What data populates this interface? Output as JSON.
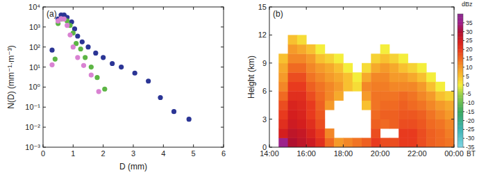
{
  "chart_data": [
    {
      "type": "scatter",
      "panel_label": "(a)",
      "xlabel": "D (mm)",
      "ylabel": "N(D) (mm⁻¹·m⁻³)",
      "log": "y",
      "grid": false,
      "xlim": [
        0,
        6
      ],
      "xticks": [
        0,
        1,
        2,
        3,
        4,
        5,
        6
      ],
      "ylim": [
        0.001,
        10000
      ],
      "yticks": [
        {
          "value": 0.001,
          "label": "10⁻³"
        },
        {
          "value": 0.01,
          "label": "10⁻²"
        },
        {
          "value": 0.1,
          "label": "10⁻¹"
        },
        {
          "value": 1,
          "label": "10⁰"
        },
        {
          "value": 10,
          "label": "10¹"
        },
        {
          "value": 100,
          "label": "10²"
        },
        {
          "value": 1000,
          "label": "10³"
        },
        {
          "value": 10000,
          "label": "10⁴"
        }
      ],
      "series": [
        {
          "color": "#2b3595",
          "marker": "circle",
          "x": [
            0.3,
            0.5,
            0.6,
            0.7,
            0.8,
            0.95,
            1.05,
            1.15,
            1.3,
            1.5,
            1.75,
            2.0,
            2.3,
            2.6,
            3.05,
            3.5,
            3.9,
            4.35,
            4.85
          ],
          "values": [
            70,
            2500,
            4000,
            4000,
            3000,
            1800,
            800,
            350,
            180,
            100,
            50,
            30,
            15,
            10,
            5,
            2,
            0.3,
            0.06,
            0.025
          ]
        },
        {
          "color": "#5cb544",
          "marker": "circle",
          "x": [
            0.4,
            0.5,
            0.6,
            0.7,
            0.8,
            0.9,
            1.0,
            1.1,
            1.25,
            1.4,
            1.6,
            1.8,
            2.05
          ],
          "values": [
            25,
            1500,
            2500,
            2500,
            2000,
            1200,
            500,
            150,
            80,
            30,
            10,
            3,
            0.8
          ]
        },
        {
          "color": "#d982d2",
          "marker": "circle",
          "x": [
            0.3,
            0.5,
            0.6,
            0.7,
            0.8,
            0.9,
            1.0,
            1.15,
            1.35,
            1.6,
            1.85
          ],
          "values": [
            13,
            2000,
            2600,
            2500,
            1200,
            400,
            100,
            30,
            12,
            4,
            0.6
          ]
        }
      ]
    },
    {
      "type": "heatmap",
      "panel_label": "(b)",
      "ylabel": "Height (km)",
      "xlabel": "BT",
      "grid": false,
      "xlim": [
        14,
        24
      ],
      "xticks": [
        {
          "value": 14,
          "label": "14:00"
        },
        {
          "value": 16,
          "label": "16:00"
        },
        {
          "value": 18,
          "label": "18:00"
        },
        {
          "value": 20,
          "label": "20:00"
        },
        {
          "value": 22,
          "label": "22:00"
        },
        {
          "value": 24,
          "label": "00:00"
        }
      ],
      "ylim": [
        0,
        15
      ],
      "yticks": [
        0,
        3,
        6,
        9,
        12,
        15
      ],
      "x_bins": [
        14,
        14.5,
        15,
        15.5,
        16,
        16.5,
        17,
        17.5,
        18,
        18.5,
        19,
        19.5,
        20,
        20.5,
        21,
        21.5,
        22,
        22.5,
        23,
        23.5,
        24
      ],
      "y_bins": [
        0,
        1,
        2,
        3,
        4,
        5,
        6,
        7,
        8,
        9,
        10,
        11,
        12
      ],
      "cells": [
        [
          null,
          36,
          30,
          28,
          26,
          22,
          15,
          10,
          12,
          14,
          16,
          20,
          18,
          18,
          20,
          20,
          18,
          16,
          15,
          14
        ],
        [
          null,
          25,
          28,
          27,
          24,
          20,
          12,
          null,
          null,
          null,
          null,
          18,
          null,
          null,
          20,
          20,
          18,
          16,
          15,
          13
        ],
        [
          null,
          22,
          26,
          25,
          22,
          18,
          null,
          null,
          null,
          null,
          null,
          16,
          15,
          16,
          18,
          18,
          17,
          15,
          14,
          12
        ],
        [
          null,
          20,
          25,
          24,
          20,
          17,
          null,
          null,
          null,
          null,
          null,
          15,
          16,
          16,
          17,
          17,
          16,
          14,
          12,
          10
        ],
        [
          null,
          18,
          24,
          23,
          20,
          16,
          10,
          null,
          null,
          null,
          5,
          14,
          15,
          15,
          16,
          15,
          14,
          12,
          10,
          8
        ],
        [
          null,
          15,
          22,
          22,
          18,
          15,
          12,
          8,
          null,
          null,
          10,
          14,
          14,
          14,
          15,
          14,
          12,
          10,
          5,
          3
        ],
        [
          null,
          12,
          20,
          20,
          16,
          14,
          12,
          10,
          5,
          2,
          12,
          13,
          13,
          12,
          12,
          12,
          10,
          5,
          0,
          null
        ],
        [
          null,
          10,
          18,
          18,
          14,
          12,
          10,
          8,
          5,
          0,
          8,
          12,
          12,
          10,
          10,
          8,
          5,
          0,
          null,
          null
        ],
        [
          null,
          8,
          15,
          15,
          12,
          10,
          8,
          5,
          0,
          null,
          2,
          8,
          10,
          8,
          5,
          3,
          0,
          null,
          null,
          null
        ],
        [
          null,
          5,
          12,
          12,
          10,
          5,
          3,
          0,
          null,
          null,
          null,
          3,
          5,
          3,
          0,
          null,
          null,
          null,
          null,
          null
        ],
        [
          null,
          null,
          10,
          8,
          5,
          0,
          null,
          null,
          null,
          null,
          null,
          null,
          0,
          null,
          null,
          null,
          null,
          null,
          null,
          null
        ],
        [
          null,
          null,
          5,
          2,
          null,
          null,
          null,
          null,
          null,
          null,
          null,
          null,
          null,
          null,
          null,
          null,
          null,
          null,
          null,
          null
        ]
      ],
      "colorbar": {
        "title": "dBz",
        "range": [
          -35,
          40
        ],
        "ticks": [
          -35,
          -30,
          -25,
          -20,
          -15,
          -10,
          -5,
          0,
          5,
          10,
          15,
          20,
          25,
          30,
          35
        ]
      }
    }
  ]
}
